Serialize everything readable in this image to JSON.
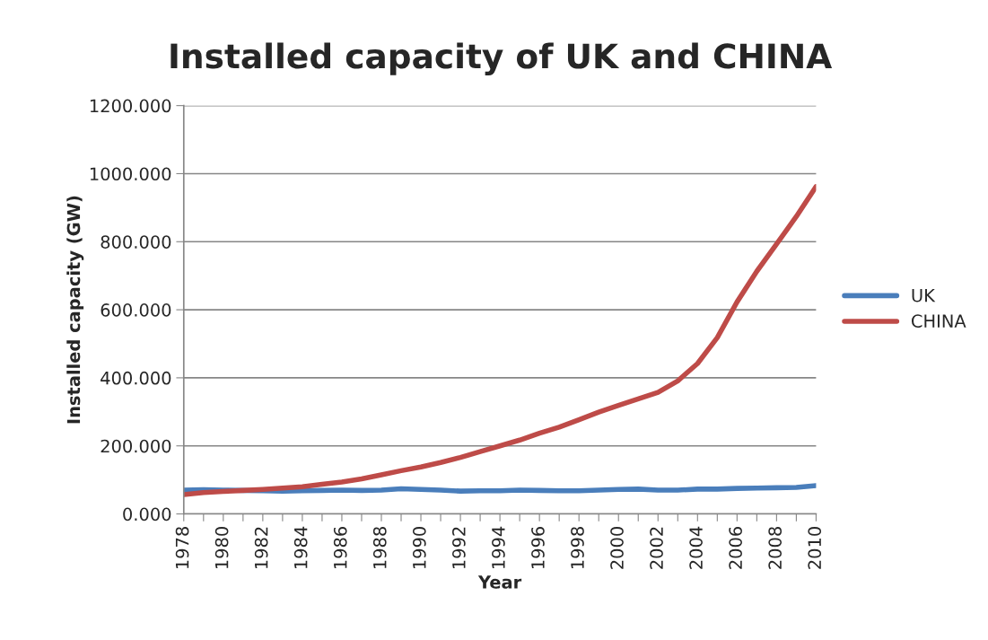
{
  "chart_data": {
    "type": "line",
    "title": "Installed capacity of UK and CHINA",
    "xlabel": "Year",
    "ylabel": "Installed capacity (GW)",
    "categories": [
      "1978",
      null,
      "1980",
      null,
      "1982",
      null,
      "1984",
      null,
      "1986",
      null,
      "1988",
      null,
      "1990",
      null,
      "1992",
      null,
      "1994",
      null,
      "1996",
      null,
      "1998",
      null,
      "2000",
      null,
      "2002",
      null,
      "2004",
      null,
      "2006",
      null,
      "2008",
      null,
      "2010"
    ],
    "series": [
      {
        "name": "UK",
        "color": "#4a7ebb",
        "values": [
          70,
          71,
          70,
          69,
          68,
          67,
          68,
          69,
          70,
          69,
          70,
          74,
          72,
          70,
          67,
          68,
          68,
          70,
          69,
          68,
          68,
          70,
          72,
          73,
          70,
          70,
          73,
          73,
          75,
          76,
          77,
          78,
          83
        ]
      },
      {
        "name": "CHINA",
        "color": "#be4b48",
        "values": [
          57,
          63,
          66,
          69,
          72,
          76,
          80,
          87,
          94,
          103,
          115,
          127,
          138,
          151,
          166,
          183,
          200,
          217,
          237,
          255,
          277,
          299,
          319,
          338,
          357,
          391,
          442,
          518,
          623,
          713,
          793,
          874,
          962
        ]
      }
    ],
    "ylim": [
      0,
      1200
    ],
    "yticks": [
      {
        "value": 0,
        "label": "0.000"
      },
      {
        "value": 200,
        "label": "200.000"
      },
      {
        "value": 400,
        "label": "400.000"
      },
      {
        "value": 600,
        "label": "600.000"
      },
      {
        "value": 800,
        "label": "800.000"
      },
      {
        "value": 1000,
        "label": "1000.000"
      },
      {
        "value": 1200,
        "label": "1200.000"
      }
    ],
    "grid": "y",
    "legend": "right",
    "marker": "none",
    "line_style": "solid"
  }
}
